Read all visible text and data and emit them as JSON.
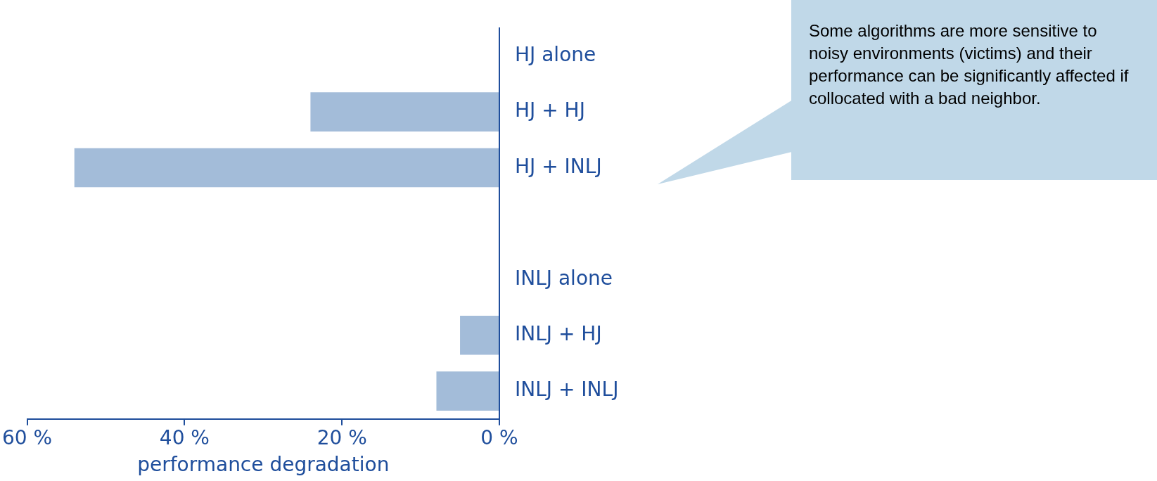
{
  "chart_data": {
    "type": "bar",
    "orientation": "horizontal",
    "xlabel": "performance degradation",
    "categories": [
      "HJ alone",
      "HJ + HJ",
      "HJ + INLJ",
      null,
      "INLJ alone",
      "INLJ + HJ",
      "INLJ + INLJ"
    ],
    "values": [
      0,
      24,
      54,
      null,
      0,
      5,
      8
    ],
    "color": "#a3bcd9",
    "xlim": [
      60,
      0
    ],
    "xticks": [
      {
        "value": 60,
        "label": "60 %"
      },
      {
        "value": 40,
        "label": "40 %"
      },
      {
        "value": 20,
        "label": "20 %"
      },
      {
        "value": 0,
        "label": "0 %"
      }
    ],
    "grid": false,
    "annotations": [
      "Some algorithms are more sensitive to noisy environments (victims) and their performance can be significantly affected if collocated with a bad neighbor."
    ]
  }
}
